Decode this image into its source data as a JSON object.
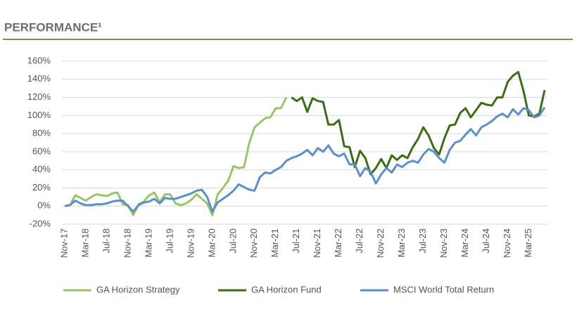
{
  "chart_data": {
    "type": "line",
    "title": "PERFORMANCE¹",
    "categories": [
      "Nov-17",
      null,
      null,
      null,
      "Mar-18",
      null,
      null,
      null,
      "Jul-18",
      null,
      null,
      null,
      "Nov-18",
      null,
      null,
      null,
      "Mar-19",
      null,
      null,
      null,
      "Jul-19",
      null,
      null,
      null,
      "Nov-19",
      null,
      null,
      null,
      "Mar-20",
      null,
      null,
      null,
      "Jul-20",
      null,
      null,
      null,
      "Nov-20",
      null,
      null,
      null,
      "Mar-21",
      null,
      null,
      null,
      "Jul-21",
      null,
      null,
      null,
      "Nov-21",
      null,
      null,
      null,
      "Mar-22",
      null,
      null,
      null,
      "Jul-22",
      null,
      null,
      null,
      "Nov-22",
      null,
      null,
      null,
      "Mar-23",
      null,
      null,
      null,
      "Jul-23",
      null,
      null,
      null,
      "Nov-23",
      null,
      null,
      null,
      "Mar-24",
      null,
      null,
      null,
      "Jul-24",
      null,
      null,
      null,
      "Nov-24",
      null,
      null,
      null,
      "Mar-25",
      null,
      null,
      null
    ],
    "series": [
      {
        "name": "GA Horizon Strategy",
        "color": "#9bc46a",
        "values": [
          0,
          1,
          12,
          9,
          6,
          10,
          13,
          12,
          11,
          14,
          15,
          2,
          1,
          -10,
          2,
          5,
          12,
          15,
          4,
          13,
          13,
          3,
          1,
          3,
          7,
          13,
          8,
          3,
          -10,
          13,
          20,
          28,
          44,
          42,
          43,
          70,
          87,
          92,
          97,
          98,
          108,
          108,
          120,
          null,
          null,
          null,
          null,
          null,
          null,
          null,
          null,
          null,
          null,
          null,
          null,
          null,
          null,
          null,
          null,
          null,
          null,
          null,
          null,
          null,
          null,
          null,
          null,
          null,
          null,
          null,
          null,
          null,
          null,
          null,
          null,
          null,
          null,
          null,
          null,
          null,
          null,
          null,
          null,
          null,
          null,
          null,
          null,
          null,
          null,
          null,
          null,
          null
        ]
      },
      {
        "name": "GA Horizon Fund",
        "color": "#3d6b16",
        "values": [
          null,
          null,
          null,
          null,
          null,
          null,
          null,
          null,
          null,
          null,
          null,
          null,
          null,
          null,
          null,
          null,
          null,
          null,
          null,
          null,
          null,
          null,
          null,
          null,
          null,
          null,
          null,
          null,
          null,
          null,
          null,
          null,
          null,
          null,
          null,
          null,
          null,
          null,
          null,
          null,
          null,
          null,
          null,
          120,
          116,
          120,
          104,
          119,
          116,
          115,
          90,
          90,
          95,
          66,
          65,
          43,
          61,
          53,
          35,
          42,
          52,
          42,
          56,
          51,
          56,
          53,
          65,
          74,
          87,
          78,
          64,
          57,
          75,
          89,
          90,
          103,
          108,
          98,
          106,
          114,
          112,
          111,
          120,
          120,
          137,
          144,
          148,
          127,
          100,
          99,
          102,
          128
        ]
      },
      {
        "name": "MSCI World Total Return",
        "color": "#5b8fc7",
        "values": [
          0,
          1,
          6,
          3,
          1,
          1,
          2,
          2,
          3,
          5,
          6,
          6,
          0,
          -6,
          1,
          4,
          5,
          8,
          3,
          9,
          8,
          8,
          10,
          12,
          14,
          17,
          18,
          10,
          -6,
          4,
          8,
          12,
          17,
          24,
          21,
          18,
          17,
          32,
          37,
          36,
          40,
          43,
          50,
          53,
          55,
          58,
          62,
          56,
          64,
          60,
          67,
          58,
          55,
          58,
          46,
          46,
          33,
          42,
          38,
          25,
          35,
          42,
          37,
          46,
          43,
          48,
          50,
          48,
          57,
          63,
          60,
          53,
          48,
          62,
          70,
          72,
          79,
          85,
          78,
          87,
          90,
          94,
          99,
          102,
          98,
          107,
          101,
          108,
          106,
          98,
          100,
          109
        ]
      }
    ],
    "ylim": [
      -20,
      160
    ],
    "yticks": [
      {
        "value": -20,
        "label": "-20%"
      },
      {
        "value": 0,
        "label": "0%"
      },
      {
        "value": 20,
        "label": "20%"
      },
      {
        "value": 40,
        "label": "40%"
      },
      {
        "value": 60,
        "label": "60%"
      },
      {
        "value": 80,
        "label": "80%"
      },
      {
        "value": 100,
        "label": "100%"
      },
      {
        "value": 120,
        "label": "120%"
      },
      {
        "value": 140,
        "label": "140%"
      },
      {
        "value": 160,
        "label": "160%"
      }
    ],
    "grid": true
  }
}
